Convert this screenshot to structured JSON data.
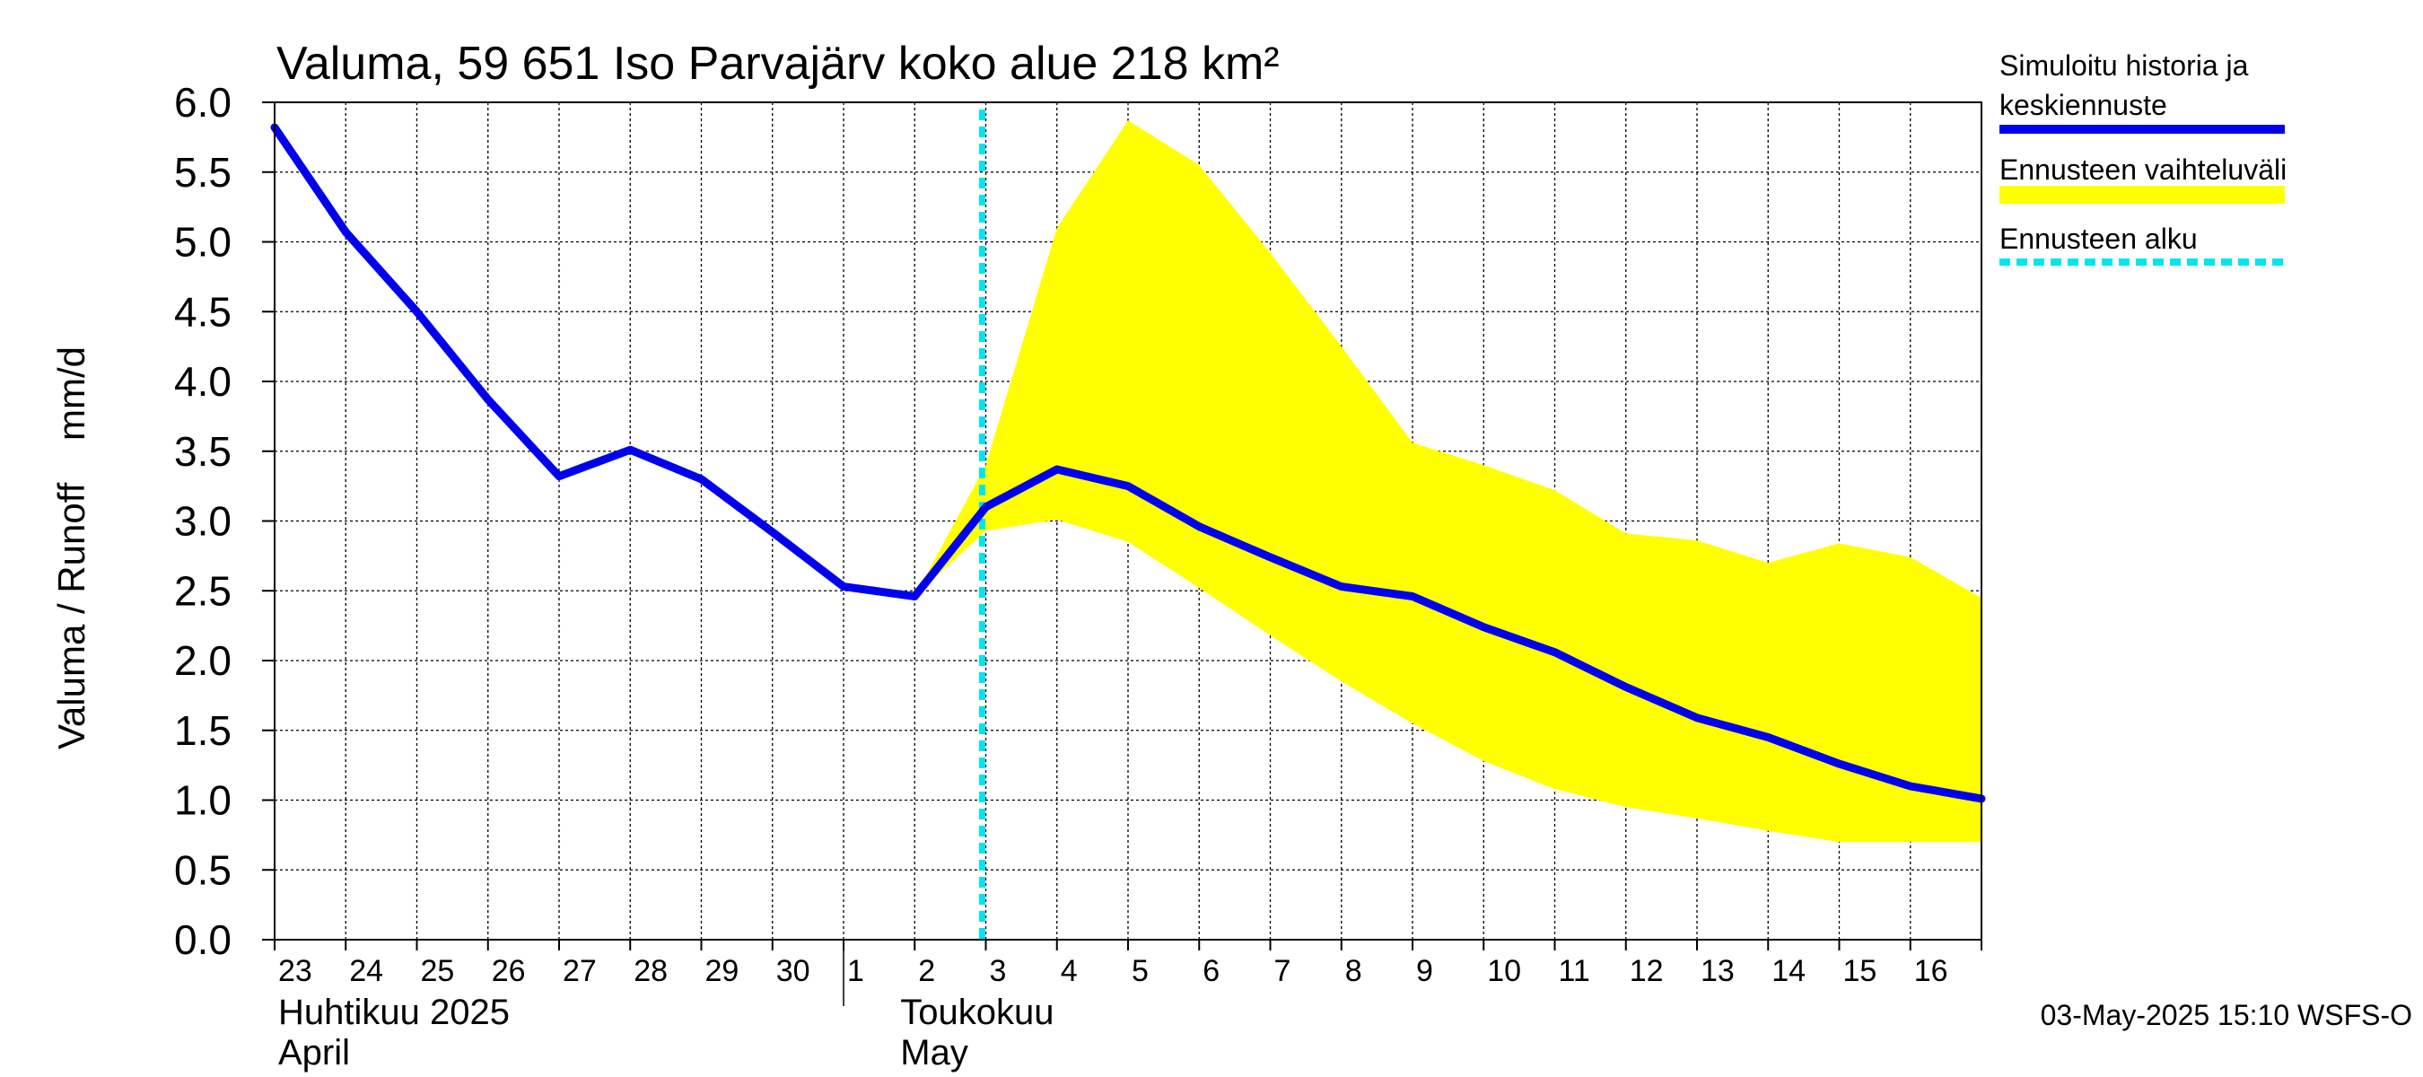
{
  "chart_data": {
    "type": "line",
    "title": "Valuma, 59 651 Iso Parvajärv koko alue 218 km²",
    "ylabel": "Valuma / Runoff    mm/d",
    "ylim": [
      0,
      6.0
    ],
    "yticks": [
      "0.0",
      "0.5",
      "1.0",
      "1.5",
      "2.0",
      "2.5",
      "3.0",
      "3.5",
      "4.0",
      "4.5",
      "5.0",
      "5.5",
      "6.0"
    ],
    "x_day_labels": [
      "23",
      "24",
      "25",
      "26",
      "27",
      "28",
      "29",
      "30",
      "1",
      "2",
      "3",
      "4",
      "5",
      "6",
      "7",
      "8",
      "9",
      "10",
      "11",
      "12",
      "13",
      "14",
      "15",
      "16"
    ],
    "month_labels": [
      {
        "line1": "Huhtikuu  2025",
        "line2": "April"
      },
      {
        "line1": "Toukokuu",
        "line2": "May"
      }
    ],
    "forecast_start_index": 10,
    "series": [
      {
        "name": "Simuloitu historia ja keskiennuste",
        "color": "#0000ee",
        "values": [
          5.82,
          5.07,
          4.5,
          3.87,
          3.32,
          3.51,
          3.3,
          2.92,
          2.53,
          2.46,
          3.1,
          3.37,
          3.25,
          2.96,
          2.74,
          2.53,
          2.46,
          2.24,
          2.06,
          1.81,
          1.59,
          1.45,
          1.26,
          1.1,
          1.01
        ]
      }
    ],
    "band": {
      "name": "Ennusteen vaihteluväli",
      "color": "#ffff00",
      "start_index": 9,
      "upper": [
        2.46,
        3.4,
        5.1,
        5.87,
        5.55,
        4.92,
        4.25,
        3.56,
        3.4,
        3.22,
        2.91,
        2.86,
        2.7,
        2.84,
        2.74,
        2.45
      ],
      "lower": [
        2.46,
        2.93,
        3.01,
        2.85,
        2.52,
        2.18,
        1.85,
        1.55,
        1.28,
        1.08,
        0.95,
        0.87,
        0.78,
        0.7,
        0.7,
        0.7
      ]
    },
    "forecast_line": {
      "name": "Ennusteen alku",
      "color": "#00e5ee"
    },
    "legend": [
      "Simuloitu historia ja\nkeskiennuste",
      "Ennusteen vaihteluväli",
      "Ennusteen alku"
    ],
    "legend_position": "right",
    "grid": true
  },
  "footer": "03-May-2025 15:10 WSFS-O"
}
